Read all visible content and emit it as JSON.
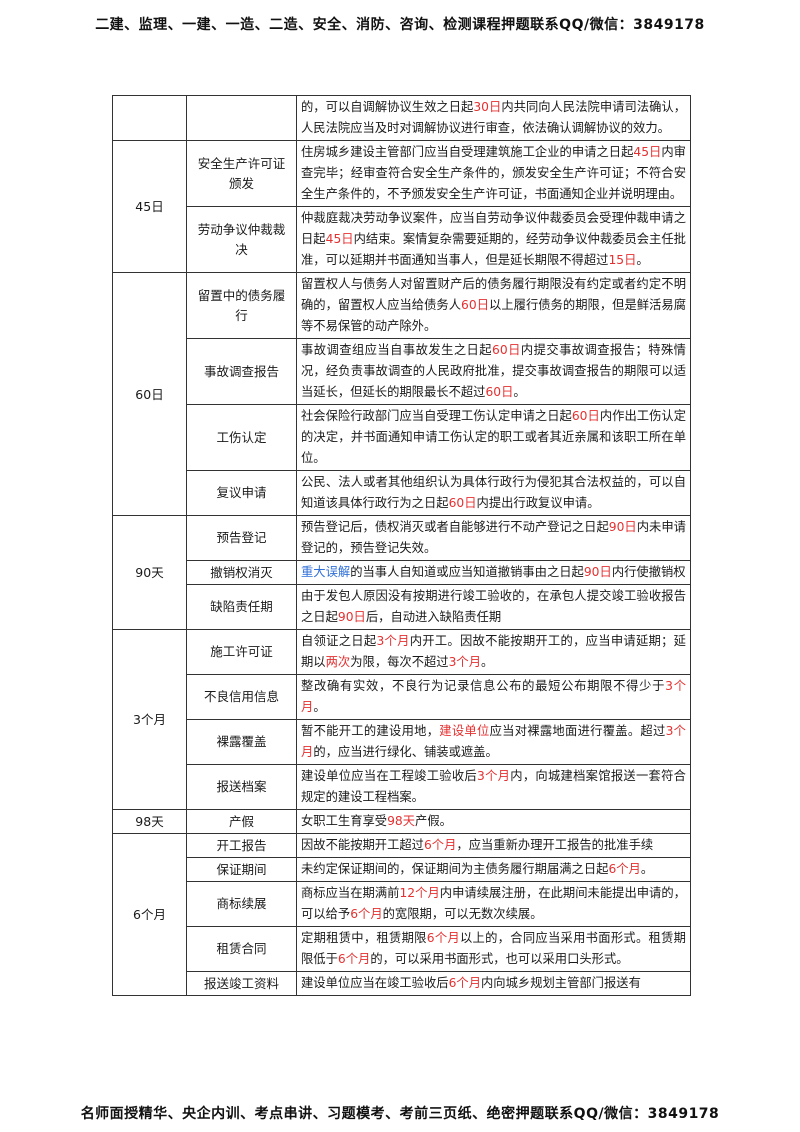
{
  "header": "二建、监理、一建、一造、二造、安全、消防、咨询、检测课程押题联系QQ/微信：3849178",
  "footer": "名师面授精华、央企内训、考点串讲、习题模考、考前三页纸、绝密押题联系QQ/微信：3849178",
  "colors": {
    "highlight_red": "#e53030",
    "highlight_blue": "#2f6fd8",
    "border": "#333333"
  },
  "rows": {
    "r0": {
      "d": [
        [
          "的，可以自调解协议生效之日起"
        ],
        [
          "30日",
          "r"
        ],
        [
          "内共同向人民法院申请司法确认，人民法院应当及时对调解协议进行审查，依法确认调解协议的效力。"
        ]
      ]
    },
    "r1": {
      "period": "45日",
      "topic": "安全生产许可证颁发",
      "d": [
        [
          "住房城乡建设主管部门应当自受理建筑施工企业的申请之日起"
        ],
        [
          "45日",
          "r"
        ],
        [
          "内审查完毕；经审查符合安全生产条件的，颁发安全生产许可证；不符合安全生产条件的，不予颁发安全生产许可证，书面通知企业并说明理由。"
        ]
      ]
    },
    "r2": {
      "topic": "劳动争议仲裁裁决",
      "d": [
        [
          "仲裁庭裁决劳动争议案件，应当自劳动争议仲裁委员会受理仲裁申请之日起"
        ],
        [
          "45日",
          "r"
        ],
        [
          "内结束。案情复杂需要延期的，经劳动争议仲裁委员会主任批准，可以延期并书面通知当事人，但是延长期限不得超过"
        ],
        [
          "15日",
          "r"
        ],
        [
          "。"
        ]
      ]
    },
    "r3": {
      "period": "60日",
      "topic": "留置中的债务履行",
      "d": [
        [
          "留置权人与债务人对留置财产后的债务履行期限没有约定或者约定不明确的，留置权人应当给债务人"
        ],
        [
          "60日",
          "r"
        ],
        [
          "以上履行债务的期限，但是鲜活易腐等不易保管的动产除外。"
        ]
      ]
    },
    "r4": {
      "topic": "事故调查报告",
      "d": [
        [
          "事故调查组应当自事故发生之日起"
        ],
        [
          "60日",
          "r"
        ],
        [
          "内提交事故调查报告；特殊情况，经负责事故调查的人民政府批准，提交事故调查报告的期限可以适当延长，但延长的期限最长不超过"
        ],
        [
          "60日",
          "r"
        ],
        [
          "。"
        ]
      ]
    },
    "r5": {
      "topic": "工伤认定",
      "d": [
        [
          "社会保险行政部门应当自受理工伤认定申请之日起"
        ],
        [
          "60日",
          "r"
        ],
        [
          "内作出工伤认定的决定，并书面通知申请工伤认定的职工或者其近亲属和该职工所在单位。"
        ]
      ]
    },
    "r6": {
      "topic": "复议申请",
      "d": [
        [
          "公民、法人或者其他组织认为具体行政行为侵犯其合法权益的，可以自知道该具体行政行为之日起"
        ],
        [
          "60日",
          "r"
        ],
        [
          "内提出行政复议申请。"
        ]
      ]
    },
    "r7": {
      "period": "90天",
      "topic": "预告登记",
      "d": [
        [
          "预告登记后，债权消灭或者自能够进行不动产登记之日起"
        ],
        [
          "90日",
          "r"
        ],
        [
          "内未申请登记的，预告登记失效。"
        ]
      ]
    },
    "r8": {
      "topic": "撤销权消灭",
      "d": [
        [
          "重大误解",
          "b"
        ],
        [
          "的当事人自知道或应当知道撤销事由之日起"
        ],
        [
          "90日",
          "r"
        ],
        [
          "内行使撤销权"
        ]
      ]
    },
    "r9": {
      "topic": "缺陷责任期",
      "d": [
        [
          "由于发包人原因没有按期进行竣工验收的，在承包人提交竣工验收报告之日起"
        ],
        [
          "90日",
          "r"
        ],
        [
          "后，自动进入缺陷责任期"
        ]
      ]
    },
    "r10": {
      "period": "3个月",
      "topic": "施工许可证",
      "d": [
        [
          "自领证之日起"
        ],
        [
          "3个月",
          "r"
        ],
        [
          "内开工。因故不能按期开工的，应当申请延期；延期以"
        ],
        [
          "两次",
          "r"
        ],
        [
          "为限，每次不超过"
        ],
        [
          "3个月",
          "r"
        ],
        [
          "。"
        ]
      ]
    },
    "r11": {
      "topic": "不良信用信息",
      "d": [
        [
          "整改确有实效，不良行为记录信息公布的最短公布期限不得少于"
        ],
        [
          "3个月",
          "r"
        ],
        [
          "。"
        ]
      ]
    },
    "r12": {
      "topic": "裸露覆盖",
      "d": [
        [
          "暂不能开工的建设用地，"
        ],
        [
          "建设单位",
          "r"
        ],
        [
          "应当对裸露地面进行覆盖。超过"
        ],
        [
          "3个月",
          "r"
        ],
        [
          "的，应当进行绿化、铺装或遮盖。"
        ]
      ]
    },
    "r13": {
      "topic": "报送档案",
      "d": [
        [
          "建设单位应当在工程竣工验收后"
        ],
        [
          "3个月",
          "r"
        ],
        [
          "内，向城建档案馆报送一套符合规定的建设工程档案。"
        ]
      ]
    },
    "r14": {
      "period": "98天",
      "topic": "产假",
      "d": [
        [
          "女职工生育享受"
        ],
        [
          "98天",
          "r"
        ],
        [
          "产假。"
        ]
      ]
    },
    "r15": {
      "period": "6个月",
      "topic": "开工报告",
      "d": [
        [
          "因故不能按期开工超过"
        ],
        [
          "6个月",
          "r"
        ],
        [
          "，应当重新办理开工报告的批准手续"
        ]
      ]
    },
    "r16": {
      "topic": "保证期间",
      "d": [
        [
          "未约定保证期间的，保证期间为主债务履行期届满之日起"
        ],
        [
          "6个月",
          "r"
        ],
        [
          "。"
        ]
      ]
    },
    "r17": {
      "topic": "商标续展",
      "d": [
        [
          "商标应当在期满前"
        ],
        [
          "12个月",
          "r"
        ],
        [
          "内申请续展注册，在此期间未能提出申请的，可以给予"
        ],
        [
          "6个月",
          "r"
        ],
        [
          "的宽限期，可以无数次续展。"
        ]
      ]
    },
    "r18": {
      "topic": "租赁合同",
      "d": [
        [
          "定期租赁中，租赁期限"
        ],
        [
          "6个月",
          "r"
        ],
        [
          "以上的，合同应当采用书面形式。租赁期限低于"
        ],
        [
          "6个月",
          "r"
        ],
        [
          "的，可以采用书面形式，也可以采用口头形式。"
        ]
      ]
    },
    "r19": {
      "topic": "报送竣工资料",
      "d": [
        [
          "建设单位应当在竣工验收后"
        ],
        [
          "6个月",
          "r"
        ],
        [
          "内向城乡规划主管部门报送有"
        ]
      ]
    }
  }
}
